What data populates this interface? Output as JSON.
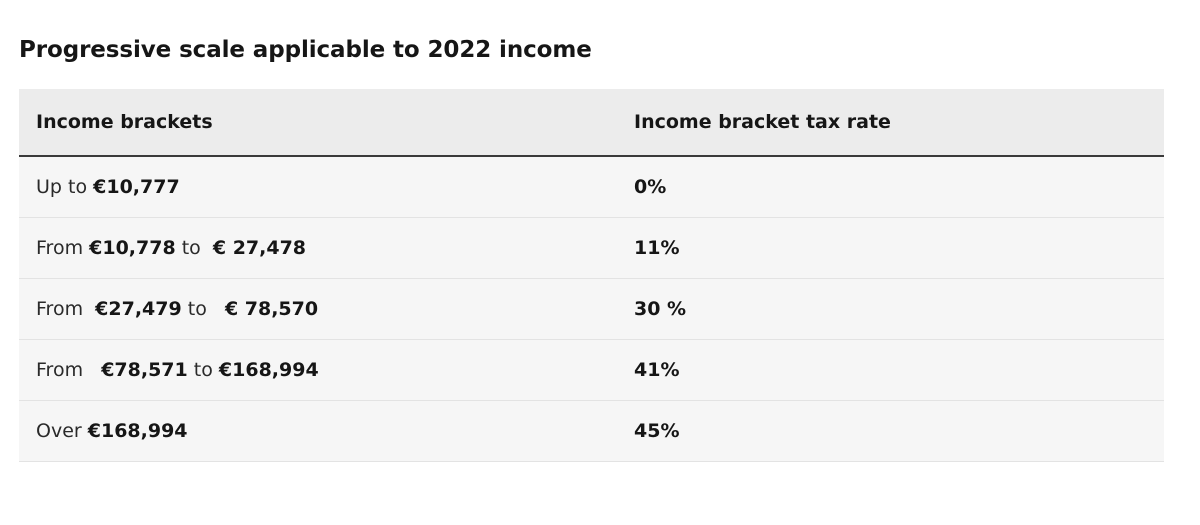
{
  "title": "Progressive scale applicable to 2022 income",
  "table": {
    "headers": [
      "Income brackets",
      "Income bracket tax rate"
    ],
    "rows": [
      {
        "bracket": [
          {
            "text": "Up to ",
            "bold": false
          },
          {
            "text": "€10,777",
            "bold": true
          }
        ],
        "rate": "0%"
      },
      {
        "bracket": [
          {
            "text": "From ",
            "bold": false
          },
          {
            "text": "€10,778",
            "bold": true
          },
          {
            "text": " to  ",
            "bold": false
          },
          {
            "text": "€ 27,478",
            "bold": true
          }
        ],
        "rate": "11%"
      },
      {
        "bracket": [
          {
            "text": "From  ",
            "bold": false
          },
          {
            "text": "€27,479",
            "bold": true
          },
          {
            "text": " to   ",
            "bold": false
          },
          {
            "text": "€ 78,570",
            "bold": true
          }
        ],
        "rate": "30 %"
      },
      {
        "bracket": [
          {
            "text": "From   ",
            "bold": false
          },
          {
            "text": "€78,571",
            "bold": true
          },
          {
            "text": " to ",
            "bold": false
          },
          {
            "text": "€168,994",
            "bold": true
          }
        ],
        "rate": "41%"
      },
      {
        "bracket": [
          {
            "text": "Over ",
            "bold": false
          },
          {
            "text": "€168,994",
            "bold": true
          }
        ],
        "rate": "45%"
      }
    ]
  }
}
